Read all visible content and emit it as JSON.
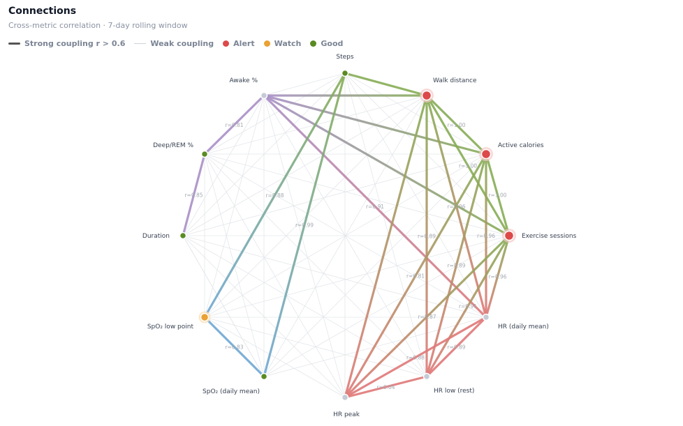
{
  "header": {
    "title": "Connections",
    "subtitle": "Cross-metric correlation · 7-day rolling window"
  },
  "legend": {
    "strong": "Strong coupling r > 0.6",
    "weak": "Weak coupling",
    "alert": "Alert",
    "watch": "Watch",
    "good": "Good"
  },
  "colors": {
    "alert": "#dc4a4a",
    "watch": "#eaa233",
    "good": "#5a8a22",
    "neutral": "#c5cbd6",
    "sleep": "#a98fc7",
    "activity": "#86ad55",
    "oxygen": "#6fa7d4",
    "heart": "#e07878"
  },
  "nodes": [
    {
      "id": "steps",
      "label": "Steps",
      "status": "good"
    },
    {
      "id": "walk",
      "label": "Walk distance",
      "status": "alert"
    },
    {
      "id": "cal",
      "label": "Active calories",
      "status": "alert"
    },
    {
      "id": "ex",
      "label": "Exercise sessions",
      "status": "alert"
    },
    {
      "id": "hrd",
      "label": "HR (daily mean)",
      "status": "neutral"
    },
    {
      "id": "hrl",
      "label": "HR low (rest)",
      "status": "neutral"
    },
    {
      "id": "hrp",
      "label": "HR peak",
      "status": "neutral"
    },
    {
      "id": "spo2d",
      "label": "SpO₂ (daily mean)",
      "status": "good"
    },
    {
      "id": "spo2l",
      "label": "SpO₂ low point",
      "status": "watch"
    },
    {
      "id": "dur",
      "label": "Duration",
      "status": "good"
    },
    {
      "id": "deep",
      "label": "Deep/REM %",
      "status": "good"
    },
    {
      "id": "awake",
      "label": "Awake %",
      "status": "neutral"
    }
  ],
  "strong_edges": [
    {
      "a": "awake",
      "b": "deep",
      "r": "r=0.81",
      "c1": "sleep",
      "c2": "sleep"
    },
    {
      "a": "deep",
      "b": "dur",
      "r": "r=0.85",
      "c1": "sleep",
      "c2": "sleep"
    },
    {
      "a": "awake",
      "b": "walk",
      "r": "",
      "c1": "sleep",
      "c2": "activity"
    },
    {
      "a": "awake",
      "b": "cal",
      "r": "",
      "c1": "sleep",
      "c2": "activity"
    },
    {
      "a": "awake",
      "b": "ex",
      "r": "",
      "c1": "sleep",
      "c2": "activity"
    },
    {
      "a": "awake",
      "b": "hrd",
      "r": "r=0.91",
      "c1": "sleep",
      "c2": "heart"
    },
    {
      "a": "steps",
      "b": "walk",
      "r": "",
      "c1": "activity",
      "c2": "activity"
    },
    {
      "a": "steps",
      "b": "spo2l",
      "r": "r=0.88",
      "c1": "activity",
      "c2": "oxygen"
    },
    {
      "a": "steps",
      "b": "spo2d",
      "r": "r=0.99",
      "c1": "activity",
      "c2": "oxygen"
    },
    {
      "a": "spo2l",
      "b": "spo2d",
      "r": "r=0.83",
      "c1": "oxygen",
      "c2": "oxygen"
    },
    {
      "a": "walk",
      "b": "cal",
      "r": "r=1.00",
      "c1": "activity",
      "c2": "activity"
    },
    {
      "a": "walk",
      "b": "ex",
      "r": "r=1.00",
      "c1": "activity",
      "c2": "activity"
    },
    {
      "a": "cal",
      "b": "ex",
      "r": "r=1.00",
      "c1": "activity",
      "c2": "activity"
    },
    {
      "a": "walk",
      "b": "hrd",
      "r": "r=0.96",
      "c1": "activity",
      "c2": "heart"
    },
    {
      "a": "walk",
      "b": "hrl",
      "r": "r=0.89",
      "c1": "activity",
      "c2": "heart"
    },
    {
      "a": "walk",
      "b": "hrp",
      "r": "",
      "c1": "activity",
      "c2": "heart"
    },
    {
      "a": "cal",
      "b": "hrd",
      "r": "r=0.96",
      "c1": "activity",
      "c2": "heart"
    },
    {
      "a": "cal",
      "b": "hrl",
      "r": "r=0.89",
      "c1": "activity",
      "c2": "heart"
    },
    {
      "a": "cal",
      "b": "hrp",
      "r": "r=0.81",
      "c1": "activity",
      "c2": "heart"
    },
    {
      "a": "ex",
      "b": "hrd",
      "r": "r=0.96",
      "c1": "activity",
      "c2": "heart"
    },
    {
      "a": "ex",
      "b": "hrl",
      "r": "r=0.91",
      "c1": "activity",
      "c2": "heart"
    },
    {
      "a": "ex",
      "b": "hrp",
      "r": "r=0.87",
      "c1": "activity",
      "c2": "heart"
    },
    {
      "a": "hrd",
      "b": "hrl",
      "r": "r=0.89",
      "c1": "heart",
      "c2": "heart"
    },
    {
      "a": "hrd",
      "b": "hrp",
      "r": "r=0.88",
      "c1": "heart",
      "c2": "heart"
    },
    {
      "a": "hrl",
      "b": "hrp",
      "r": "r=0.84",
      "c1": "heart",
      "c2": "heart"
    }
  ],
  "weak_edges": [
    [
      "steps",
      "cal"
    ],
    [
      "steps",
      "ex"
    ],
    [
      "steps",
      "hrd"
    ],
    [
      "steps",
      "hrl"
    ],
    [
      "steps",
      "hrp"
    ],
    [
      "steps",
      "dur"
    ],
    [
      "steps",
      "deep"
    ],
    [
      "steps",
      "awake"
    ],
    [
      "walk",
      "spo2d"
    ],
    [
      "walk",
      "spo2l"
    ],
    [
      "walk",
      "dur"
    ],
    [
      "walk",
      "deep"
    ],
    [
      "cal",
      "spo2d"
    ],
    [
      "cal",
      "dur"
    ],
    [
      "cal",
      "deep"
    ],
    [
      "ex",
      "spo2d"
    ],
    [
      "ex",
      "spo2l"
    ],
    [
      "ex",
      "deep"
    ],
    [
      "ex",
      "dur"
    ],
    [
      "hrd",
      "spo2d"
    ],
    [
      "hrd",
      "deep"
    ],
    [
      "hrd",
      "dur"
    ],
    [
      "hrd",
      "spo2l"
    ],
    [
      "hrl",
      "dur"
    ],
    [
      "hrl",
      "spo2l"
    ],
    [
      "hrl",
      "awake"
    ],
    [
      "hrl",
      "deep"
    ],
    [
      "hrp",
      "dur"
    ],
    [
      "hrp",
      "deep"
    ],
    [
      "hrp",
      "awake"
    ],
    [
      "hrp",
      "spo2l"
    ],
    [
      "spo2d",
      "deep"
    ],
    [
      "spo2d",
      "awake"
    ],
    [
      "spo2d",
      "dur"
    ],
    [
      "spo2l",
      "deep"
    ],
    [
      "spo2l",
      "awake"
    ],
    [
      "spo2l",
      "cal"
    ],
    [
      "dur",
      "awake"
    ],
    [
      "dur",
      "spo2d"
    ]
  ]
}
